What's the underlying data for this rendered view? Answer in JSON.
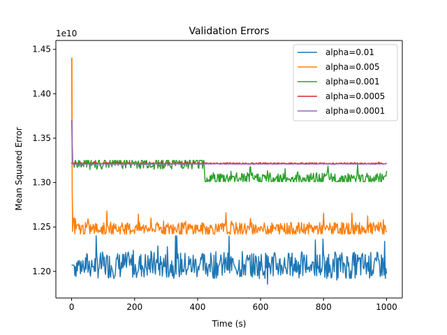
{
  "chart_data": {
    "type": "line",
    "title": "Validation Errors",
    "xlabel": "Time (s)",
    "ylabel": "Mean Squared Error",
    "y_offset_label": "1e10",
    "xlim": [
      -50,
      1050
    ],
    "ylim": [
      1.17,
      1.46
    ],
    "x_ticks": [
      0,
      200,
      400,
      600,
      800,
      1000
    ],
    "y_ticks": [
      1.2,
      1.25,
      1.3,
      1.35,
      1.4,
      1.45
    ],
    "x_tick_labels": [
      "0",
      "200",
      "400",
      "600",
      "800",
      "1000"
    ],
    "y_tick_labels": [
      "1.20",
      "1.25",
      "1.30",
      "1.35",
      "1.40",
      "1.45"
    ],
    "grid": false,
    "legend_position": "top-right",
    "series": [
      {
        "name": "alpha=0.01",
        "color": "#1f77b4",
        "x": [
          0,
          1000
        ],
        "y": [
          1.207,
          1.207
        ],
        "range": [
          1.185,
          1.24
        ]
      },
      {
        "name": "alpha=0.005",
        "color": "#ff7f0e",
        "x": [
          0,
          1,
          2,
          3,
          6,
          10,
          1000
        ],
        "y": [
          1.44,
          1.44,
          1.29,
          1.245,
          1.26,
          1.248,
          1.248
        ],
        "range": [
          1.242,
          1.268
        ]
      },
      {
        "name": "alpha=0.001",
        "color": "#2ca02c",
        "x": [
          0,
          3,
          420,
          421,
          424,
          430,
          1000
        ],
        "y": [
          1.322,
          1.322,
          1.322,
          1.313,
          1.302,
          1.305,
          1.304
        ],
        "range": [
          1.301,
          1.325
        ]
      },
      {
        "name": "alpha=0.0005",
        "color": "#d62728",
        "x": [
          0,
          1000
        ],
        "y": [
          1.3215,
          1.3215
        ],
        "range": [
          1.32,
          1.323
        ]
      },
      {
        "name": "alpha=0.0001",
        "color": "#9467bd",
        "x": [
          0,
          1,
          3,
          1000
        ],
        "y": [
          1.37,
          1.37,
          1.321,
          1.321
        ],
        "range": [
          1.3205,
          1.3215
        ]
      }
    ]
  }
}
